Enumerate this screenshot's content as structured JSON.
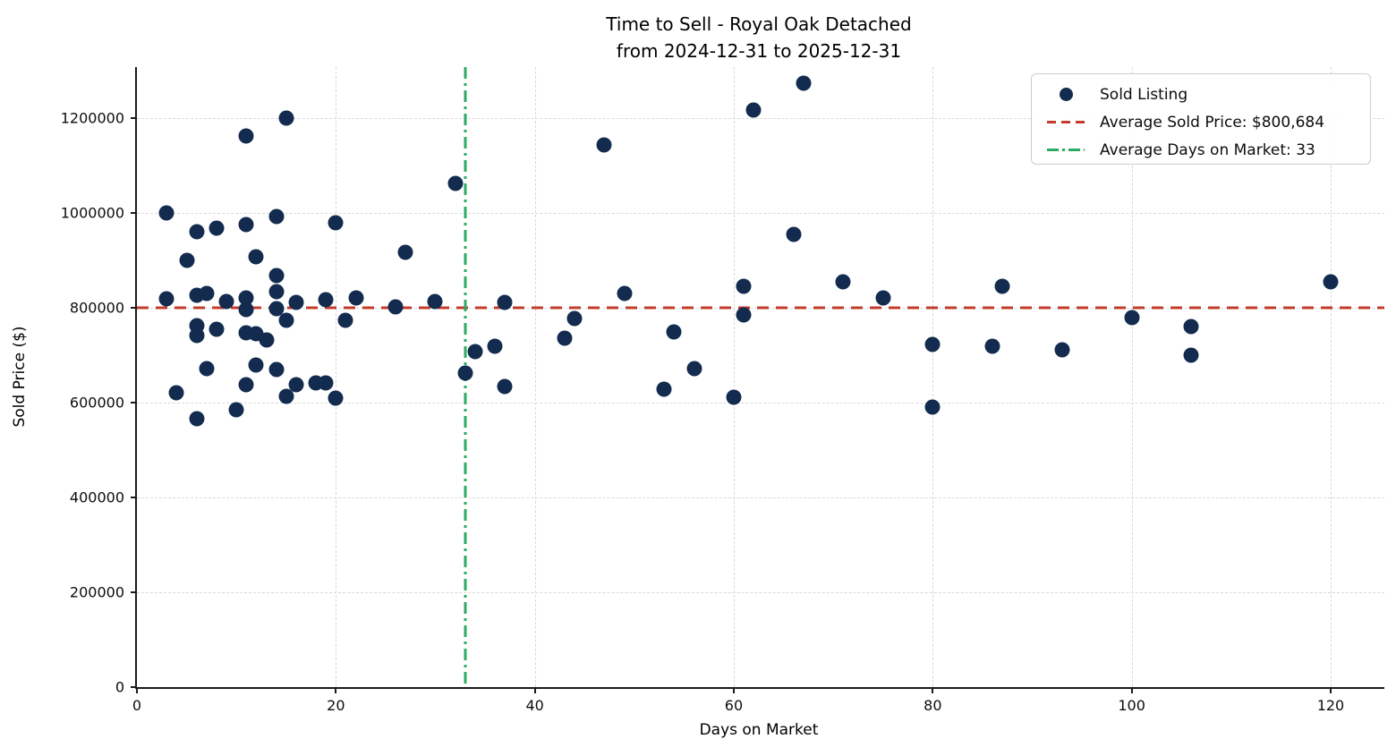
{
  "chart_data": {
    "type": "scatter",
    "title": "Time to Sell - Royal Oak Detached",
    "subtitle": "from 2024-12-31 to 2025-12-31",
    "xlabel": "Days on Market",
    "ylabel": "Sold Price ($)",
    "xlim": [
      0,
      125.4
    ],
    "ylim": [
      0,
      1307700
    ],
    "x_ticks": [
      0,
      20,
      40,
      60,
      80,
      100,
      120
    ],
    "y_ticks": [
      0,
      200000,
      400000,
      600000,
      800000,
      1000000,
      1200000
    ],
    "grid": true,
    "legend_position": "upper right",
    "colors": {
      "point": "#132b4e",
      "avg_price_line": "#c23b2d",
      "avg_days_line": "#2cab63",
      "gridline": "#d9d9d9",
      "axis": "#1a1a1a",
      "background": "#ffffff"
    },
    "series": [
      {
        "name": "Sold Listing",
        "points": [
          [
            3,
            1000000
          ],
          [
            3,
            819000
          ],
          [
            4,
            620000
          ],
          [
            5,
            900000
          ],
          [
            6,
            960000
          ],
          [
            6,
            826000
          ],
          [
            6,
            762000
          ],
          [
            6,
            742000
          ],
          [
            6,
            566000
          ],
          [
            7,
            830000
          ],
          [
            7,
            672000
          ],
          [
            8,
            968000
          ],
          [
            8,
            755000
          ],
          [
            9,
            813000
          ],
          [
            10,
            585000
          ],
          [
            11,
            1162000
          ],
          [
            11,
            975000
          ],
          [
            11,
            821000
          ],
          [
            11,
            796000
          ],
          [
            11,
            747000
          ],
          [
            11,
            638000
          ],
          [
            12,
            908000
          ],
          [
            12,
            745000
          ],
          [
            12,
            679000
          ],
          [
            13,
            732000
          ],
          [
            14,
            993000
          ],
          [
            14,
            868000
          ],
          [
            14,
            834000
          ],
          [
            14,
            798000
          ],
          [
            14,
            670000
          ],
          [
            15,
            1200000
          ],
          [
            15,
            774000
          ],
          [
            15,
            613000
          ],
          [
            16,
            811000
          ],
          [
            16,
            638000
          ],
          [
            18,
            641000
          ],
          [
            19,
            818000
          ],
          [
            19,
            641000
          ],
          [
            20,
            980000
          ],
          [
            20,
            610000
          ],
          [
            21,
            774000
          ],
          [
            22,
            821000
          ],
          [
            26,
            802000
          ],
          [
            27,
            917000
          ],
          [
            30,
            813000
          ],
          [
            32,
            1063000
          ],
          [
            33,
            662000
          ],
          [
            34,
            708000
          ],
          [
            36,
            719000
          ],
          [
            37,
            811000
          ],
          [
            37,
            634000
          ],
          [
            43,
            736000
          ],
          [
            44,
            777000
          ],
          [
            47,
            1143000
          ],
          [
            49,
            830000
          ],
          [
            53,
            628000
          ],
          [
            54,
            749000
          ],
          [
            56,
            672000
          ],
          [
            60,
            611000
          ],
          [
            61,
            845000
          ],
          [
            61,
            785000
          ],
          [
            62,
            1217000
          ],
          [
            66,
            955000
          ],
          [
            67,
            1274000
          ],
          [
            71,
            855000
          ],
          [
            75,
            820000
          ],
          [
            80,
            722000
          ],
          [
            80,
            590000
          ],
          [
            86,
            719000
          ],
          [
            87,
            845000
          ],
          [
            93,
            711000
          ],
          [
            100,
            779000
          ],
          [
            106,
            760000
          ],
          [
            106,
            700000
          ],
          [
            120,
            855000
          ]
        ]
      }
    ],
    "reference_lines": {
      "average_sold_price": {
        "value": 800684,
        "orientation": "horizontal",
        "style": "dashed",
        "color": "#c23b2d"
      },
      "average_days_on_market": {
        "value": 33,
        "orientation": "vertical",
        "style": "dashdot",
        "color": "#2cab63"
      }
    },
    "legend": {
      "items": [
        {
          "name": "sold-listing",
          "type": "dot",
          "label": "Sold Listing"
        },
        {
          "name": "average-sold-price",
          "type": "dashed",
          "label": "Average Sold Price: $800,684"
        },
        {
          "name": "average-days-on-market",
          "type": "dashdot",
          "label": "Average Days on Market: 33"
        }
      ]
    }
  }
}
